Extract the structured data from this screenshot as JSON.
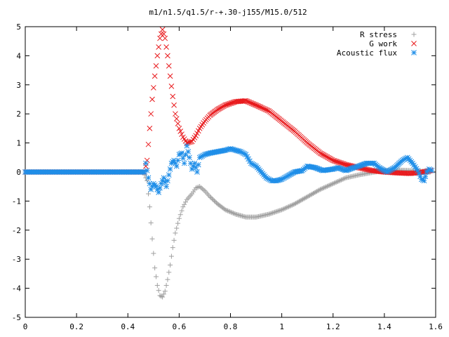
{
  "chart_data": {
    "type": "scatter",
    "title": "m1/n1.5/q1.5/r-+.30-j155/M15.0/512",
    "xlabel": "",
    "ylabel": "",
    "xlim": [
      0,
      1.6
    ],
    "ylim": [
      -5,
      5
    ],
    "xticks": [
      "0",
      "0.2",
      "0.4",
      "0.6",
      "0.8",
      "1",
      "1.2",
      "1.4",
      "1.6"
    ],
    "yticks": [
      "5",
      "4",
      "3",
      "2",
      "1",
      "0",
      "-1",
      "-2",
      "-3",
      "-4",
      "-5"
    ],
    "grid": false,
    "legend": "top-right",
    "series": [
      {
        "name": "R stress",
        "marker": "plus",
        "color": "#a0a0a0",
        "points": [
          [
            0.0,
            0
          ],
          [
            0.1,
            0
          ],
          [
            0.2,
            0
          ],
          [
            0.3,
            0
          ],
          [
            0.4,
            0
          ],
          [
            0.46,
            0
          ],
          [
            0.475,
            -0.3
          ],
          [
            0.485,
            -1.2
          ],
          [
            0.495,
            -2.3
          ],
          [
            0.505,
            -3.3
          ],
          [
            0.515,
            -3.9
          ],
          [
            0.525,
            -4.25
          ],
          [
            0.535,
            -4.3
          ],
          [
            0.545,
            -4.1
          ],
          [
            0.555,
            -3.7
          ],
          [
            0.565,
            -3.2
          ],
          [
            0.575,
            -2.6
          ],
          [
            0.585,
            -2.1
          ],
          [
            0.6,
            -1.6
          ],
          [
            0.615,
            -1.2
          ],
          [
            0.63,
            -0.95
          ],
          [
            0.65,
            -0.75
          ],
          [
            0.665,
            -0.55
          ],
          [
            0.68,
            -0.5
          ],
          [
            0.7,
            -0.65
          ],
          [
            0.72,
            -0.85
          ],
          [
            0.75,
            -1.1
          ],
          [
            0.78,
            -1.3
          ],
          [
            0.82,
            -1.45
          ],
          [
            0.86,
            -1.55
          ],
          [
            0.9,
            -1.55
          ],
          [
            0.95,
            -1.45
          ],
          [
            1.0,
            -1.3
          ],
          [
            1.05,
            -1.1
          ],
          [
            1.1,
            -0.85
          ],
          [
            1.15,
            -0.6
          ],
          [
            1.2,
            -0.4
          ],
          [
            1.25,
            -0.2
          ],
          [
            1.3,
            -0.1
          ],
          [
            1.35,
            -0.02
          ],
          [
            1.4,
            0.05
          ],
          [
            1.45,
            0.07
          ],
          [
            1.5,
            0.05
          ],
          [
            1.55,
            0.02
          ],
          [
            1.58,
            0.0
          ]
        ]
      },
      {
        "name": "G work",
        "marker": "cross",
        "color": "#e8191c",
        "points": [
          [
            0.0,
            0
          ],
          [
            0.1,
            0
          ],
          [
            0.2,
            0
          ],
          [
            0.3,
            0
          ],
          [
            0.4,
            0
          ],
          [
            0.465,
            0
          ],
          [
            0.475,
            0.4
          ],
          [
            0.485,
            1.5
          ],
          [
            0.495,
            2.5
          ],
          [
            0.505,
            3.3
          ],
          [
            0.515,
            4.0
          ],
          [
            0.525,
            4.6
          ],
          [
            0.535,
            4.9
          ],
          [
            0.545,
            4.6
          ],
          [
            0.555,
            4.0
          ],
          [
            0.565,
            3.3
          ],
          [
            0.575,
            2.6
          ],
          [
            0.585,
            2.0
          ],
          [
            0.6,
            1.5
          ],
          [
            0.615,
            1.2
          ],
          [
            0.63,
            1.0
          ],
          [
            0.65,
            1.05
          ],
          [
            0.665,
            1.25
          ],
          [
            0.68,
            1.5
          ],
          [
            0.7,
            1.75
          ],
          [
            0.72,
            1.95
          ],
          [
            0.75,
            2.15
          ],
          [
            0.78,
            2.3
          ],
          [
            0.82,
            2.42
          ],
          [
            0.86,
            2.45
          ],
          [
            0.9,
            2.3
          ],
          [
            0.95,
            2.1
          ],
          [
            1.0,
            1.75
          ],
          [
            1.05,
            1.4
          ],
          [
            1.1,
            1.0
          ],
          [
            1.15,
            0.65
          ],
          [
            1.2,
            0.4
          ],
          [
            1.25,
            0.25
          ],
          [
            1.3,
            0.15
          ],
          [
            1.35,
            0.05
          ],
          [
            1.4,
            0.0
          ],
          [
            1.45,
            -0.03
          ],
          [
            1.5,
            -0.05
          ],
          [
            1.55,
            0.0
          ],
          [
            1.58,
            0.05
          ]
        ]
      },
      {
        "name": "Acoustic flux",
        "marker": "star",
        "color": "#1f8ee8",
        "points": [
          [
            0.0,
            0
          ],
          [
            0.1,
            0
          ],
          [
            0.2,
            0
          ],
          [
            0.3,
            0
          ],
          [
            0.4,
            0
          ],
          [
            0.465,
            0
          ],
          [
            0.47,
            0.3
          ],
          [
            0.48,
            -0.2
          ],
          [
            0.49,
            -0.6
          ],
          [
            0.5,
            -0.4
          ],
          [
            0.51,
            -0.5
          ],
          [
            0.52,
            -0.7
          ],
          [
            0.53,
            -0.4
          ],
          [
            0.54,
            -0.2
          ],
          [
            0.55,
            -0.5
          ],
          [
            0.56,
            -0.1
          ],
          [
            0.57,
            0.3
          ],
          [
            0.58,
            0.4
          ],
          [
            0.59,
            0.2
          ],
          [
            0.6,
            0.6
          ],
          [
            0.61,
            0.65
          ],
          [
            0.62,
            0.3
          ],
          [
            0.63,
            0.9
          ],
          [
            0.64,
            0.5
          ],
          [
            0.65,
            0.1
          ],
          [
            0.66,
            0.3
          ],
          [
            0.67,
            0.0
          ],
          [
            0.68,
            0.5
          ],
          [
            0.7,
            0.6
          ],
          [
            0.72,
            0.65
          ],
          [
            0.75,
            0.7
          ],
          [
            0.78,
            0.75
          ],
          [
            0.8,
            0.8
          ],
          [
            0.82,
            0.75
          ],
          [
            0.84,
            0.7
          ],
          [
            0.86,
            0.6
          ],
          [
            0.88,
            0.3
          ],
          [
            0.9,
            0.2
          ],
          [
            0.92,
            0.0
          ],
          [
            0.94,
            -0.2
          ],
          [
            0.96,
            -0.3
          ],
          [
            0.98,
            -0.3
          ],
          [
            1.0,
            -0.25
          ],
          [
            1.02,
            -0.15
          ],
          [
            1.05,
            0.0
          ],
          [
            1.08,
            0.05
          ],
          [
            1.1,
            0.2
          ],
          [
            1.13,
            0.15
          ],
          [
            1.16,
            0.05
          ],
          [
            1.2,
            0.1
          ],
          [
            1.22,
            0.15
          ],
          [
            1.25,
            0.05
          ],
          [
            1.28,
            0.15
          ],
          [
            1.3,
            0.2
          ],
          [
            1.33,
            0.3
          ],
          [
            1.36,
            0.3
          ],
          [
            1.38,
            0.15
          ],
          [
            1.41,
            0.0
          ],
          [
            1.44,
            0.15
          ],
          [
            1.47,
            0.4
          ],
          [
            1.49,
            0.5
          ],
          [
            1.51,
            0.3
          ],
          [
            1.53,
            0.05
          ],
          [
            1.545,
            -0.25
          ],
          [
            1.555,
            -0.3
          ],
          [
            1.565,
            0.0
          ],
          [
            1.575,
            0.1
          ],
          [
            1.585,
            0.05
          ]
        ]
      }
    ]
  }
}
